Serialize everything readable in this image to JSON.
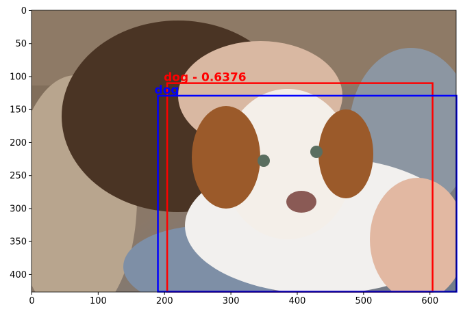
{
  "chart_data": {
    "type": "image",
    "xlim": [
      -0.5,
      639.5
    ],
    "ylim": [
      426.5,
      -0.5
    ],
    "xticks": [
      0,
      100,
      200,
      300,
      400,
      500,
      600
    ],
    "yticks": [
      0,
      50,
      100,
      150,
      200,
      250,
      300,
      350,
      400
    ],
    "boxes": [
      {
        "label": "dog - 0.6376",
        "color": "#ff0000",
        "x0": 204,
        "y0": 110,
        "x1": 604,
        "y1": 426
      },
      {
        "label": "dog",
        "color": "#0000ff",
        "x0": 190,
        "y0": 129,
        "x1": 640,
        "y1": 426
      }
    ]
  }
}
